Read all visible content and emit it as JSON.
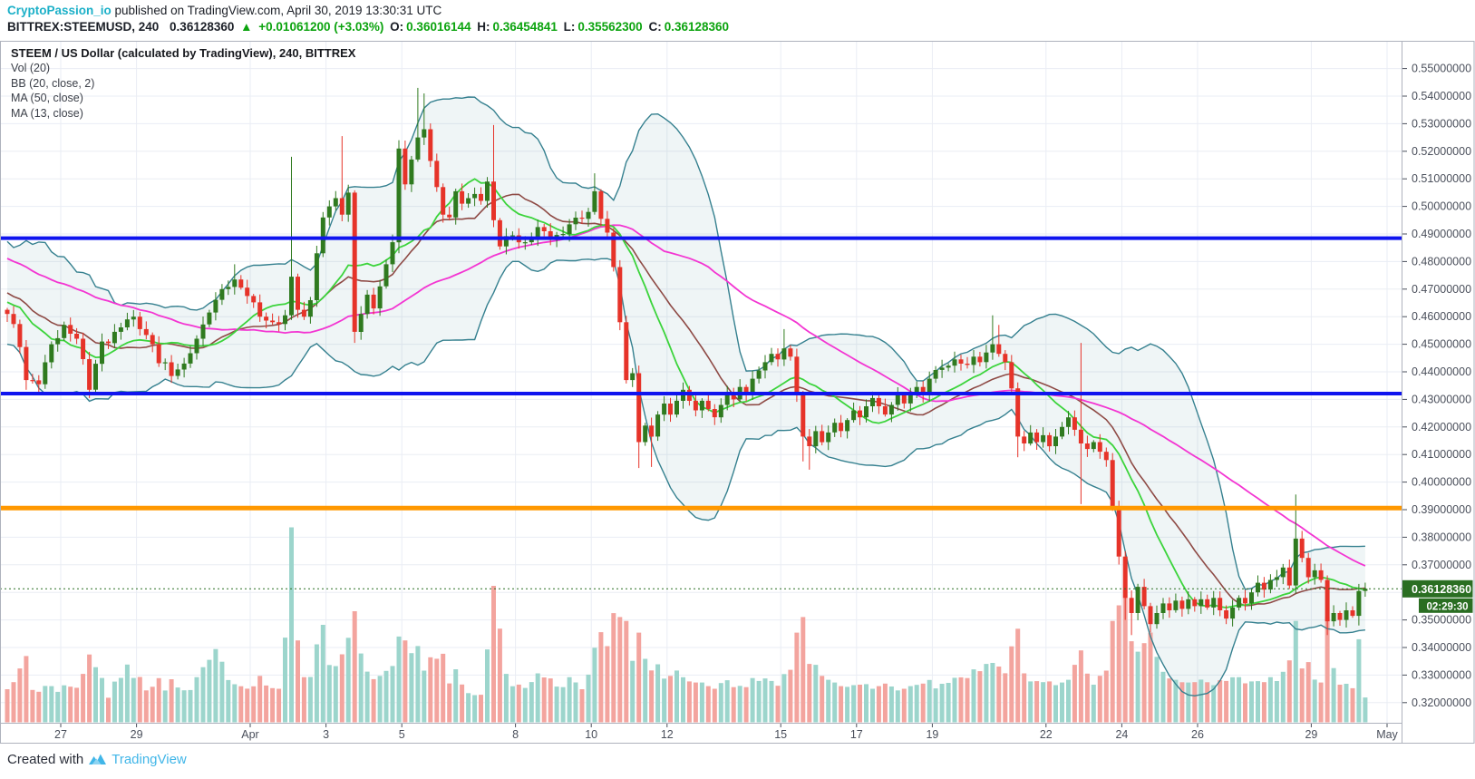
{
  "header": {
    "username": "CryptoPassion_io",
    "publish_text": " published on TradingView.com, April 30, 2019 13:30:31 UTC"
  },
  "quote": {
    "symbol": "BITTREX:STEEMUSD, 240",
    "last_price": "0.36128360",
    "arrow": "▲",
    "change": "+0.01061200 (+3.03%)",
    "o_label": "O:",
    "o": "0.36016144",
    "h_label": "H:",
    "h": "0.36454841",
    "l_label": "L:",
    "l": "0.35562300",
    "c_label": "C:",
    "c": "0.36128360"
  },
  "legend": {
    "title": "STEEM / US Dollar (calculated by TradingView), 240, BITTREX",
    "lines": [
      "Vol (20)",
      "BB (20, close, 2)",
      "MA (50, close)",
      "MA (13, close)"
    ]
  },
  "footer": {
    "created_with": "Created with",
    "brand": "TradingView"
  },
  "chart_data": {
    "type": "candlestick",
    "symbol": "BITTREX:STEEMUSD",
    "interval": "240",
    "exchange": "BITTREX",
    "price_axis": {
      "min": 0.32,
      "max": 0.55,
      "step": 0.01,
      "decimals": 8,
      "hidden_label": 0.36
    },
    "time_axis": {
      "labels": [
        {
          "text": "27",
          "day": 0
        },
        {
          "text": "29",
          "day": 2
        },
        {
          "text": "Apr",
          "day": 5
        },
        {
          "text": "3",
          "day": 7
        },
        {
          "text": "5",
          "day": 9
        },
        {
          "text": "8",
          "day": 12
        },
        {
          "text": "10",
          "day": 14
        },
        {
          "text": "12",
          "day": 16
        },
        {
          "text": "15",
          "day": 19
        },
        {
          "text": "17",
          "day": 21
        },
        {
          "text": "19",
          "day": 23
        },
        {
          "text": "22",
          "day": 26
        },
        {
          "text": "24",
          "day": 28
        },
        {
          "text": "26",
          "day": 30
        },
        {
          "text": "29",
          "day": 33
        },
        {
          "text": "May",
          "day": 35
        }
      ]
    },
    "price_lines": [
      {
        "name": "resistance-blue-upper",
        "price": 0.4885,
        "color": "#0f14ef",
        "width": 4
      },
      {
        "name": "support-blue-lower",
        "price": 0.4321,
        "color": "#0f14ef",
        "width": 4
      },
      {
        "name": "support-orange",
        "price": 0.3906,
        "color": "#ff9800",
        "width": 5
      }
    ],
    "current_price": {
      "value": 0.3612836,
      "label": "0.36128360",
      "countdown": "02:29:30"
    },
    "indicators": {
      "volume": {
        "name": "Vol (20)"
      },
      "bb": {
        "name": "BB (20, close, 2)",
        "period": 20,
        "stdev": 2
      },
      "ma50": {
        "name": "MA (50, close)",
        "period": 50
      },
      "ma13": {
        "name": "MA (13, close)",
        "period": 13
      }
    },
    "bars": 216,
    "seed_prehistory": {
      "bars": 50,
      "start": 0.502,
      "end": 0.462,
      "zigzag": 0.011
    },
    "close_anchors": [
      [
        0,
        0.461
      ],
      [
        2,
        0.449
      ],
      [
        3,
        0.437
      ],
      [
        5,
        0.4355
      ],
      [
        7,
        0.45
      ],
      [
        9,
        0.457
      ],
      [
        11,
        0.452
      ],
      [
        13,
        0.4335
      ],
      [
        15,
        0.451
      ],
      [
        17,
        0.4545
      ],
      [
        19,
        0.459
      ],
      [
        21,
        0.4555
      ],
      [
        23,
        0.45
      ],
      [
        26,
        0.4385
      ],
      [
        28,
        0.443
      ],
      [
        30,
        0.452
      ],
      [
        32,
        0.4615
      ],
      [
        34,
        0.47
      ],
      [
        36,
        0.4735
      ],
      [
        38,
        0.4675
      ],
      [
        40,
        0.46
      ],
      [
        42,
        0.458
      ],
      [
        44,
        0.4605
      ],
      [
        45,
        0.4745
      ],
      [
        46,
        0.4625
      ],
      [
        47,
        0.46
      ],
      [
        48,
        0.466
      ],
      [
        49,
        0.483
      ],
      [
        50,
        0.496
      ],
      [
        51,
        0.5
      ],
      [
        52,
        0.503
      ],
      [
        53,
        0.497
      ],
      [
        54,
        0.505
      ],
      [
        55,
        0.4545
      ],
      [
        56,
        0.461
      ],
      [
        57,
        0.468
      ],
      [
        58,
        0.463
      ],
      [
        59,
        0.471
      ],
      [
        60,
        0.479
      ],
      [
        61,
        0.487
      ],
      [
        62,
        0.521
      ],
      [
        63,
        0.508
      ],
      [
        64,
        0.517
      ],
      [
        65,
        0.525
      ],
      [
        66,
        0.528
      ],
      [
        67,
        0.5165
      ],
      [
        68,
        0.507
      ],
      [
        69,
        0.497
      ],
      [
        70,
        0.496
      ],
      [
        71,
        0.5055
      ],
      [
        72,
        0.501
      ],
      [
        73,
        0.503
      ],
      [
        74,
        0.5045
      ],
      [
        75,
        0.502
      ],
      [
        76,
        0.509
      ],
      [
        77,
        0.495
      ],
      [
        78,
        0.4855
      ],
      [
        80,
        0.4895
      ],
      [
        82,
        0.487
      ],
      [
        84,
        0.4925
      ],
      [
        85,
        0.491
      ],
      [
        86,
        0.488
      ],
      [
        88,
        0.49
      ],
      [
        89,
        0.4935
      ],
      [
        91,
        0.4955
      ],
      [
        92,
        0.498
      ],
      [
        93,
        0.5055
      ],
      [
        94,
        0.4955
      ],
      [
        95,
        0.4905
      ],
      [
        96,
        0.478
      ],
      [
        97,
        0.458
      ],
      [
        98,
        0.437
      ],
      [
        99,
        0.4395
      ],
      [
        100,
        0.4145
      ],
      [
        101,
        0.4205
      ],
      [
        102,
        0.4165
      ],
      [
        103,
        0.4245
      ],
      [
        104,
        0.4285
      ],
      [
        105,
        0.4245
      ],
      [
        106,
        0.4295
      ],
      [
        107,
        0.4335
      ],
      [
        108,
        0.4295
      ],
      [
        109,
        0.426
      ],
      [
        110,
        0.4295
      ],
      [
        111,
        0.4265
      ],
      [
        112,
        0.4235
      ],
      [
        113,
        0.428
      ],
      [
        114,
        0.4325
      ],
      [
        115,
        0.43
      ],
      [
        116,
        0.4345
      ],
      [
        117,
        0.432
      ],
      [
        118,
        0.4375
      ],
      [
        119,
        0.4405
      ],
      [
        120,
        0.4435
      ],
      [
        121,
        0.4465
      ],
      [
        122,
        0.4445
      ],
      [
        123,
        0.4485
      ],
      [
        124,
        0.4455
      ],
      [
        125,
        0.432
      ],
      [
        126,
        0.4165
      ],
      [
        127,
        0.413
      ],
      [
        128,
        0.4185
      ],
      [
        129,
        0.4145
      ],
      [
        130,
        0.418
      ],
      [
        131,
        0.4215
      ],
      [
        132,
        0.4185
      ],
      [
        133,
        0.4225
      ],
      [
        134,
        0.426
      ],
      [
        135,
        0.4235
      ],
      [
        136,
        0.4275
      ],
      [
        137,
        0.4305
      ],
      [
        138,
        0.4275
      ],
      [
        139,
        0.4245
      ],
      [
        140,
        0.428
      ],
      [
        141,
        0.4315
      ],
      [
        142,
        0.4285
      ],
      [
        143,
        0.4315
      ],
      [
        144,
        0.4345
      ],
      [
        145,
        0.4315
      ],
      [
        146,
        0.4375
      ],
      [
        148,
        0.4415
      ],
      [
        150,
        0.4445
      ],
      [
        152,
        0.4425
      ],
      [
        153,
        0.4455
      ],
      [
        154,
        0.4435
      ],
      [
        155,
        0.447
      ],
      [
        156,
        0.45
      ],
      [
        157,
        0.4465
      ],
      [
        158,
        0.4435
      ],
      [
        159,
        0.434
      ],
      [
        160,
        0.4165
      ],
      [
        161,
        0.414
      ],
      [
        162,
        0.418
      ],
      [
        163,
        0.4145
      ],
      [
        164,
        0.417
      ],
      [
        165,
        0.413
      ],
      [
        166,
        0.4165
      ],
      [
        167,
        0.42
      ],
      [
        168,
        0.4235
      ],
      [
        169,
        0.419
      ],
      [
        170,
        0.414
      ],
      [
        171,
        0.412
      ],
      [
        172,
        0.4145
      ],
      [
        173,
        0.411
      ],
      [
        174,
        0.408
      ],
      [
        175,
        0.391
      ],
      [
        176,
        0.373
      ],
      [
        177,
        0.358
      ],
      [
        178,
        0.3525
      ],
      [
        179,
        0.362
      ],
      [
        180,
        0.355
      ],
      [
        181,
        0.3485
      ],
      [
        182,
        0.3525
      ],
      [
        183,
        0.356
      ],
      [
        184,
        0.3535
      ],
      [
        185,
        0.357
      ],
      [
        186,
        0.354
      ],
      [
        187,
        0.3575
      ],
      [
        188,
        0.355
      ],
      [
        189,
        0.3575
      ],
      [
        190,
        0.3545
      ],
      [
        191,
        0.358
      ],
      [
        192,
        0.3535
      ],
      [
        193,
        0.3505
      ],
      [
        194,
        0.3545
      ],
      [
        195,
        0.358
      ],
      [
        196,
        0.356
      ],
      [
        197,
        0.36
      ],
      [
        198,
        0.3635
      ],
      [
        199,
        0.361
      ],
      [
        200,
        0.3645
      ],
      [
        201,
        0.3655
      ],
      [
        202,
        0.369
      ],
      [
        203,
        0.3625
      ],
      [
        204,
        0.3795
      ],
      [
        205,
        0.3725
      ],
      [
        206,
        0.3655
      ],
      [
        207,
        0.368
      ],
      [
        208,
        0.3645
      ],
      [
        209,
        0.3495
      ],
      [
        210,
        0.3525
      ],
      [
        211,
        0.35
      ],
      [
        212,
        0.3535
      ],
      [
        213,
        0.3515
      ],
      [
        214,
        0.3605
      ],
      [
        215,
        0.3613
      ]
    ],
    "wick_highs": {
      "36": 0.479,
      "45": 0.518,
      "53": 0.5255,
      "62": 0.524,
      "65": 0.543,
      "66": 0.541,
      "77": 0.5295,
      "93": 0.512,
      "123": 0.4555,
      "156": 0.4605,
      "157": 0.457,
      "170": 0.4505,
      "204": 0.3955
    },
    "wick_lows": {
      "3": 0.4335,
      "13": 0.4305,
      "55": 0.4505,
      "62": 0.483,
      "100": 0.4051,
      "102": 0.4055,
      "126": 0.4075,
      "127": 0.4045,
      "160": 0.409,
      "170": 0.392,
      "177": 0.35,
      "178": 0.3445,
      "181": 0.3455,
      "193": 0.3485,
      "209": 0.3445,
      "214": 0.348
    },
    "volume_anchors": [
      [
        0,
        0.28
      ],
      [
        3,
        0.34
      ],
      [
        6,
        0.22
      ],
      [
        9,
        0.26
      ],
      [
        12,
        0.3
      ],
      [
        13,
        0.36
      ],
      [
        16,
        0.22
      ],
      [
        19,
        0.45
      ],
      [
        22,
        0.26
      ],
      [
        26,
        0.3
      ],
      [
        29,
        0.24
      ],
      [
        33,
        0.52
      ],
      [
        36,
        0.3
      ],
      [
        38,
        0.26
      ],
      [
        40,
        0.32
      ],
      [
        43,
        0.3
      ],
      [
        45,
        1.0
      ],
      [
        46,
        0.42
      ],
      [
        48,
        0.3
      ],
      [
        50,
        0.5
      ],
      [
        51,
        0.42
      ],
      [
        53,
        0.45
      ],
      [
        55,
        0.57
      ],
      [
        57,
        0.32
      ],
      [
        59,
        0.28
      ],
      [
        61,
        0.34
      ],
      [
        62,
        0.44
      ],
      [
        64,
        0.4
      ],
      [
        65,
        0.46
      ],
      [
        67,
        0.34
      ],
      [
        69,
        0.38
      ],
      [
        71,
        0.3
      ],
      [
        73,
        0.24
      ],
      [
        75,
        0.22
      ],
      [
        77,
        0.7
      ],
      [
        79,
        0.36
      ],
      [
        81,
        0.3
      ],
      [
        83,
        0.34
      ],
      [
        85,
        0.38
      ],
      [
        87,
        0.3
      ],
      [
        89,
        0.34
      ],
      [
        91,
        0.3
      ],
      [
        93,
        0.46
      ],
      [
        94,
        0.5
      ],
      [
        96,
        0.56
      ],
      [
        98,
        0.52
      ],
      [
        100,
        0.46
      ],
      [
        102,
        0.38
      ],
      [
        104,
        0.32
      ],
      [
        106,
        0.36
      ],
      [
        108,
        0.3
      ],
      [
        110,
        0.3
      ],
      [
        112,
        0.26
      ],
      [
        114,
        0.3
      ],
      [
        116,
        0.26
      ],
      [
        118,
        0.3
      ],
      [
        120,
        0.34
      ],
      [
        122,
        0.3
      ],
      [
        125,
        0.46
      ],
      [
        126,
        0.54
      ],
      [
        127,
        0.44
      ],
      [
        129,
        0.34
      ],
      [
        131,
        0.3
      ],
      [
        133,
        0.26
      ],
      [
        135,
        0.3
      ],
      [
        137,
        0.26
      ],
      [
        139,
        0.3
      ],
      [
        141,
        0.24
      ],
      [
        143,
        0.28
      ],
      [
        145,
        0.3
      ],
      [
        147,
        0.26
      ],
      [
        148,
        0.34
      ],
      [
        150,
        0.36
      ],
      [
        152,
        0.4
      ],
      [
        154,
        0.42
      ],
      [
        156,
        0.46
      ],
      [
        158,
        0.38
      ],
      [
        160,
        0.48
      ],
      [
        162,
        0.3
      ],
      [
        164,
        0.32
      ],
      [
        166,
        0.28
      ],
      [
        168,
        0.32
      ],
      [
        170,
        0.5
      ],
      [
        172,
        0.3
      ],
      [
        174,
        0.4
      ],
      [
        175,
        0.52
      ],
      [
        176,
        0.6
      ],
      [
        177,
        0.64
      ],
      [
        178,
        0.55
      ],
      [
        179,
        0.4
      ],
      [
        180,
        0.5
      ],
      [
        181,
        0.58
      ],
      [
        183,
        0.38
      ],
      [
        185,
        0.32
      ],
      [
        187,
        0.3
      ],
      [
        189,
        0.34
      ],
      [
        191,
        0.28
      ],
      [
        193,
        0.32
      ],
      [
        195,
        0.34
      ],
      [
        197,
        0.3
      ],
      [
        199,
        0.32
      ],
      [
        201,
        0.36
      ],
      [
        203,
        0.4
      ],
      [
        204,
        0.52
      ],
      [
        205,
        0.34
      ],
      [
        206,
        0.38
      ],
      [
        208,
        0.3
      ],
      [
        209,
        0.54
      ],
      [
        211,
        0.3
      ],
      [
        213,
        0.28
      ],
      [
        214,
        0.48
      ],
      [
        215,
        0.22
      ]
    ],
    "colors": {
      "up": "#2f7a1f",
      "down": "#e63329",
      "vol_up": "#9cd5cc",
      "vol_down": "#f3a49e",
      "bb_line": "#35808f",
      "bb_fill": "rgba(53,128,143,0.08)",
      "bb_basis": "#8e4a45",
      "ma50": "#f335d2",
      "ma13": "#3cd43c",
      "grid": "#eaedf4",
      "frame": "#aeb2bd",
      "axis_text": "#4a4f5b",
      "badge_bg": "#2a6e22",
      "badge_text": "#ffffff",
      "dotted_price": "#2a6e22",
      "background": "#ffffff"
    }
  }
}
